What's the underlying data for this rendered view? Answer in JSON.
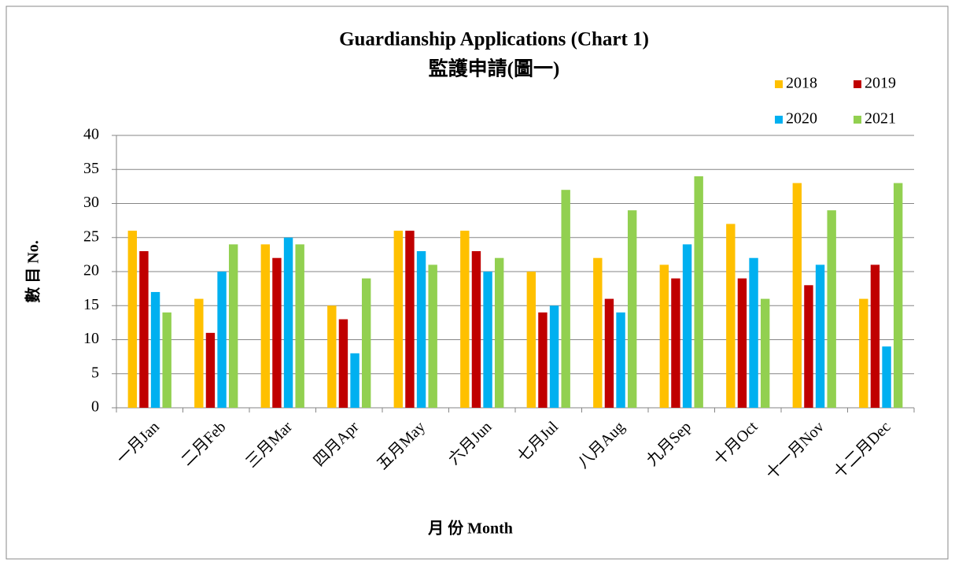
{
  "chart_data": {
    "type": "bar",
    "title": [
      "Guardianship Applications (Chart 1)",
      "監護申請(圖一)"
    ],
    "x_label": "月 份 Month",
    "y_label": "數 目 No.",
    "categories": [
      "一月Jan",
      "二月Feb",
      "三月Mar",
      "四月Apr",
      "五月May",
      "六月Jun",
      "七月Jul",
      "八月Aug",
      "九月Sep",
      "十月Oct",
      "十一月Nov",
      "十二月Dec"
    ],
    "series": [
      {
        "name": "2018",
        "color": "#ffc000",
        "values": [
          26,
          16,
          24,
          15,
          26,
          26,
          20,
          22,
          21,
          27,
          33,
          16
        ]
      },
      {
        "name": "2019",
        "color": "#c00000",
        "values": [
          23,
          11,
          22,
          13,
          26,
          23,
          14,
          16,
          19,
          19,
          18,
          21
        ]
      },
      {
        "name": "2020",
        "color": "#00b0f0",
        "values": [
          17,
          20,
          25,
          8,
          23,
          20,
          15,
          14,
          24,
          22,
          21,
          9
        ]
      },
      {
        "name": "2021",
        "color": "#92d050",
        "values": [
          14,
          24,
          24,
          19,
          21,
          22,
          32,
          29,
          34,
          16,
          29,
          33
        ]
      }
    ],
    "ylim": [
      0,
      40
    ],
    "yticks": [
      0,
      5,
      10,
      15,
      20,
      25,
      30,
      35,
      40
    ],
    "grid": true,
    "legend": "top-right"
  }
}
